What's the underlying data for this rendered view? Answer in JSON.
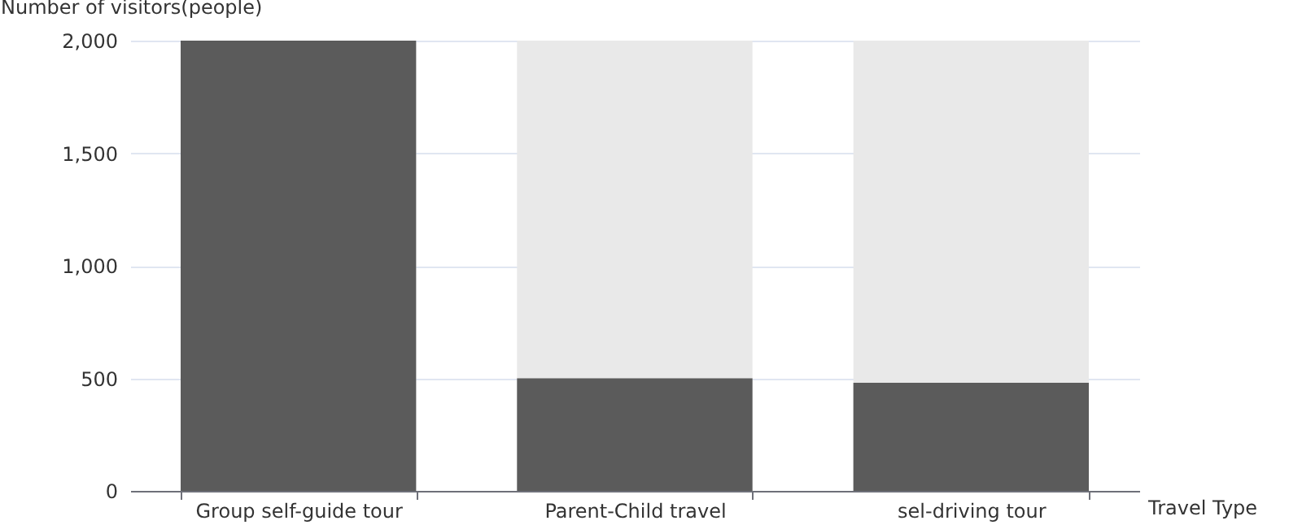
{
  "chart_data": {
    "type": "bar",
    "ylabel": "Number of visitors(people)",
    "xlabel": "Travel Type",
    "categories": [
      "Group self-guide tour",
      "Parent-Child travel",
      "sel-driving tour"
    ],
    "values": [
      2000,
      500,
      480
    ],
    "color": "#5b5b5b",
    "ylim": [
      0,
      2000
    ],
    "yticks": [
      0,
      500,
      {
        "value": 1000,
        "label": "1,000"
      },
      {
        "value": 1500,
        "label": "1,500"
      },
      {
        "value": 2000,
        "label": "2,000"
      }
    ],
    "grid": "y"
  }
}
